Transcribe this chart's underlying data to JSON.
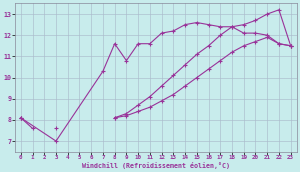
{
  "xlabel": "Windchill (Refroidissement éolien,°C)",
  "bg_color": "#c8ecec",
  "line_color": "#993399",
  "grid_color": "#aabbcc",
  "xlim": [
    -0.5,
    23.5
  ],
  "ylim": [
    6.5,
    13.5
  ],
  "yticks": [
    7,
    8,
    9,
    10,
    11,
    12,
    13
  ],
  "xticks": [
    0,
    1,
    2,
    3,
    4,
    5,
    6,
    7,
    8,
    9,
    10,
    11,
    12,
    13,
    14,
    15,
    16,
    17,
    18,
    19,
    20,
    21,
    22,
    23
  ],
  "series": [
    {
      "x": [
        0,
        1,
        2,
        3,
        4,
        5,
        6,
        7,
        8,
        9,
        10,
        11,
        12,
        13,
        14,
        15,
        16,
        17,
        18,
        19,
        20,
        21,
        22,
        23
      ],
      "y": [
        8.1,
        7.6,
        null,
        7.6,
        null,
        null,
        null,
        null,
        8.1,
        8.2,
        8.4,
        8.6,
        8.9,
        9.2,
        9.6,
        10.0,
        10.4,
        10.8,
        11.2,
        11.5,
        11.7,
        11.9,
        11.6,
        11.5
      ]
    },
    {
      "x": [
        0,
        3,
        7,
        8,
        9,
        10,
        11,
        12,
        13,
        14,
        15,
        16,
        17,
        18,
        19,
        20,
        21,
        22,
        23
      ],
      "y": [
        8.1,
        7.0,
        10.3,
        11.6,
        10.8,
        11.6,
        11.6,
        12.1,
        12.2,
        12.5,
        12.6,
        12.5,
        12.4,
        12.4,
        12.1,
        12.1,
        12.0,
        11.6,
        11.5
      ]
    },
    {
      "x": [
        0,
        1,
        2,
        3,
        4,
        5,
        6,
        7,
        8,
        9,
        10,
        11,
        12,
        13,
        14,
        15,
        16,
        17,
        18,
        19,
        20,
        21,
        22,
        23
      ],
      "y": [
        8.1,
        null,
        null,
        null,
        null,
        null,
        null,
        null,
        8.1,
        8.3,
        8.7,
        9.1,
        9.6,
        10.1,
        10.6,
        11.1,
        11.5,
        12.0,
        12.4,
        12.5,
        12.7,
        13.0,
        13.2,
        11.5
      ]
    }
  ]
}
